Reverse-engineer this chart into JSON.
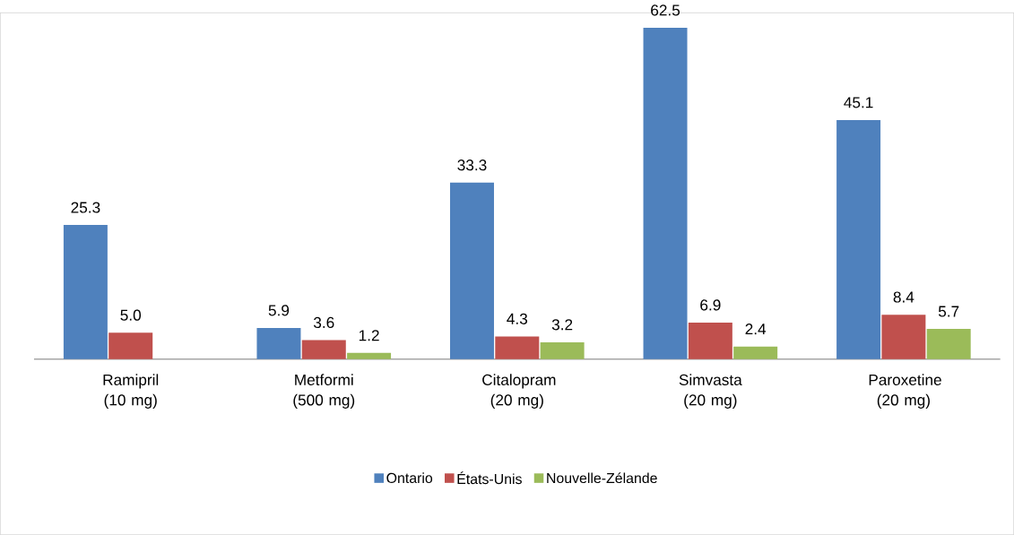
{
  "chart_data": {
    "type": "bar",
    "categories": [
      "Ramipril (10 mg)",
      "Metformi (500 mg)",
      "Citalopram (20 mg)",
      "Simvasta (20 mg)",
      "Paroxetine (20 mg)"
    ],
    "series": [
      {
        "name": "Ontario",
        "color": "#4f81bd",
        "values": [
          25.3,
          5.9,
          33.3,
          62.5,
          45.1
        ],
        "value_labels": [
          "25.3",
          "5.9",
          "33.3",
          "62.5",
          "45.1"
        ]
      },
      {
        "name": "États-Unis",
        "color": "#c0504d",
        "values": [
          5.0,
          3.6,
          4.3,
          6.9,
          8.4
        ],
        "value_labels": [
          "5.0",
          "3.6",
          "4.3",
          "6.9",
          "8.4"
        ]
      },
      {
        "name": "Nouvelle-Zélande",
        "color": "#9bbb59",
        "values": [
          null,
          1.2,
          3.2,
          2.4,
          5.7
        ],
        "value_labels": [
          null,
          "1.2",
          "3.2",
          "2.4",
          "5.7"
        ]
      }
    ],
    "legend": "bottom"
  }
}
